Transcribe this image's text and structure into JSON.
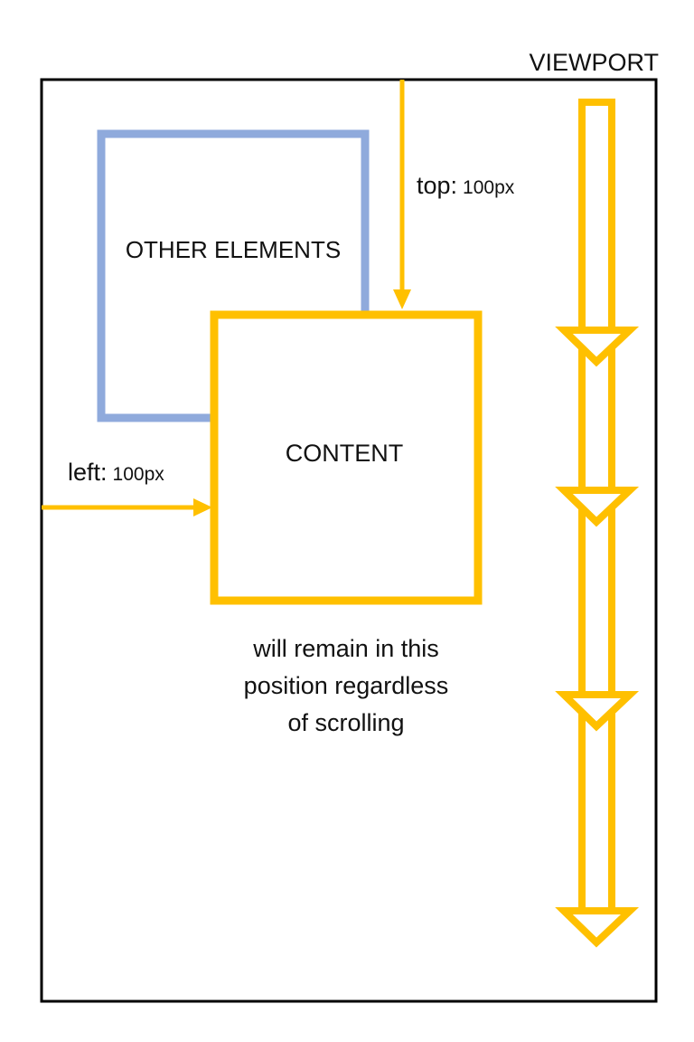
{
  "viewport": {
    "label": "VIEWPORT"
  },
  "other_elements": {
    "label": "OTHER ELEMENTS"
  },
  "content": {
    "label": "CONTENT"
  },
  "top_offset": {
    "property": "top:",
    "value": "100px"
  },
  "left_offset": {
    "property": "left:",
    "value": "100px"
  },
  "note": {
    "line1": "will remain in this",
    "line2": "position regardless",
    "line3": "of scrolling"
  },
  "colors": {
    "accent": "#FFC000",
    "other_border": "#8FAADC",
    "frame": "#000000"
  }
}
